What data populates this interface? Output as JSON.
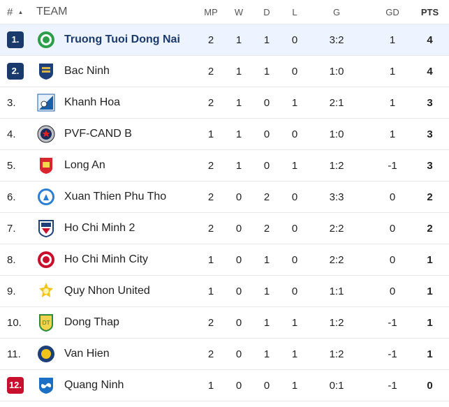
{
  "header": {
    "rank": "#",
    "sort_icon": "▲",
    "team": "TEAM",
    "mp": "MP",
    "w": "W",
    "d": "D",
    "l": "L",
    "g": "G",
    "gd": "GD",
    "pts": "PTS"
  },
  "colors": {
    "promotion": "#1a3a6e",
    "relegation": "#c8102e",
    "highlight": "#eef4ff"
  },
  "rows": [
    {
      "rank": "1.",
      "team": "Truong Tuoi Dong Nai",
      "mp": "2",
      "w": "1",
      "d": "1",
      "l": "0",
      "g": "3:2",
      "gd": "1",
      "pts": "4",
      "badge": "promotion",
      "highlight": true,
      "logo": "truong-tuoi-dong-nai-logo"
    },
    {
      "rank": "2.",
      "team": "Bac Ninh",
      "mp": "2",
      "w": "1",
      "d": "1",
      "l": "0",
      "g": "1:0",
      "gd": "1",
      "pts": "4",
      "badge": "promotion",
      "logo": "bac-ninh-logo"
    },
    {
      "rank": "3.",
      "team": "Khanh Hoa",
      "mp": "2",
      "w": "1",
      "d": "0",
      "l": "1",
      "g": "2:1",
      "gd": "1",
      "pts": "3",
      "logo": "khanh-hoa-logo"
    },
    {
      "rank": "4.",
      "team": "PVF-CAND B",
      "mp": "1",
      "w": "1",
      "d": "0",
      "l": "0",
      "g": "1:0",
      "gd": "1",
      "pts": "3",
      "logo": "pvf-cand-b-logo"
    },
    {
      "rank": "5.",
      "team": "Long An",
      "mp": "2",
      "w": "1",
      "d": "0",
      "l": "1",
      "g": "1:2",
      "gd": "-1",
      "pts": "3",
      "logo": "long-an-logo"
    },
    {
      "rank": "6.",
      "team": "Xuan Thien Phu Tho",
      "mp": "2",
      "w": "0",
      "d": "2",
      "l": "0",
      "g": "3:3",
      "gd": "0",
      "pts": "2",
      "logo": "xuan-thien-phu-tho-logo"
    },
    {
      "rank": "7.",
      "team": "Ho Chi Minh 2",
      "mp": "2",
      "w": "0",
      "d": "2",
      "l": "0",
      "g": "2:2",
      "gd": "0",
      "pts": "2",
      "logo": "ho-chi-minh-2-logo"
    },
    {
      "rank": "8.",
      "team": "Ho Chi Minh City",
      "mp": "1",
      "w": "0",
      "d": "1",
      "l": "0",
      "g": "2:2",
      "gd": "0",
      "pts": "1",
      "logo": "ho-chi-minh-city-logo"
    },
    {
      "rank": "9.",
      "team": "Quy Nhon United",
      "mp": "1",
      "w": "0",
      "d": "1",
      "l": "0",
      "g": "1:1",
      "gd": "0",
      "pts": "1",
      "logo": "quy-nhon-united-logo"
    },
    {
      "rank": "10.",
      "team": "Dong Thap",
      "mp": "2",
      "w": "0",
      "d": "1",
      "l": "1",
      "g": "1:2",
      "gd": "-1",
      "pts": "1",
      "logo": "dong-thap-logo"
    },
    {
      "rank": "11.",
      "team": "Van Hien",
      "mp": "2",
      "w": "0",
      "d": "1",
      "l": "1",
      "g": "1:2",
      "gd": "-1",
      "pts": "1",
      "logo": "van-hien-logo"
    },
    {
      "rank": "12.",
      "team": "Quang Ninh",
      "mp": "1",
      "w": "0",
      "d": "0",
      "l": "1",
      "g": "0:1",
      "gd": "-1",
      "pts": "0",
      "badge": "relegation",
      "logo": "quang-ninh-logo"
    }
  ]
}
